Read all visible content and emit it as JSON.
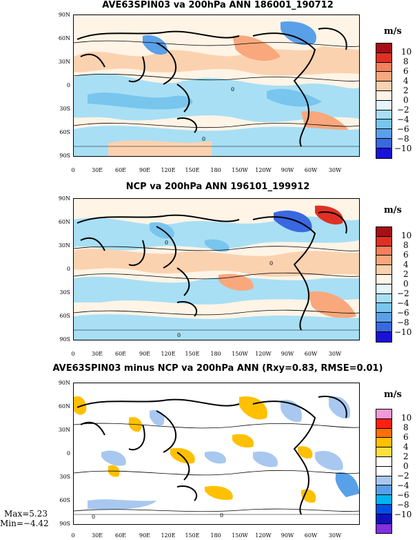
{
  "panels": [
    {
      "title": "AVE63SPIN03 va 200hPa ANN 186001_190712"
    },
    {
      "title": "NCP va 200hPa ANN 196101_199912"
    },
    {
      "title": "AVE63SPIN03 minus NCP va 200hPa ANN (Rxy=0.83, RMSE=0.01)"
    }
  ],
  "lat_labels": [
    "90N",
    "60N",
    "30N",
    "0",
    "30S",
    "60S",
    "90S"
  ],
  "lon_labels": [
    "0",
    "30E",
    "60E",
    "90E",
    "120E",
    "150E",
    "180",
    "150W",
    "120W",
    "90W",
    "60W",
    "30W"
  ],
  "colorbar_unit": "m/s",
  "colorbar_levels": [
    "10",
    "8",
    "6",
    "4",
    "2",
    "0",
    "−2",
    "−4",
    "−6",
    "−8",
    "−10"
  ],
  "colorbar_colors_fields": [
    "#a50f15",
    "#e03024",
    "#f5805c",
    "#f8a87c",
    "#fbd2b0",
    "#fff4e6",
    "#e3f6fc",
    "#a8dff4",
    "#78c5ee",
    "#5aa0e8",
    "#3a68e0",
    "#1a10d8"
  ],
  "colorbar_colors_diff": [
    "#f09ad8",
    "#ff2010",
    "#ff7000",
    "#ffc000",
    "#ffe040",
    "#ffffff",
    "#ffffff",
    "#a8c8f0",
    "#58a0e8",
    "#00b4f0",
    "#0050e8",
    "#1010c0",
    "#8030e0"
  ],
  "contour_label": "0",
  "stats": {
    "max": "Max=5.23",
    "min": "Min=−4.42"
  }
}
